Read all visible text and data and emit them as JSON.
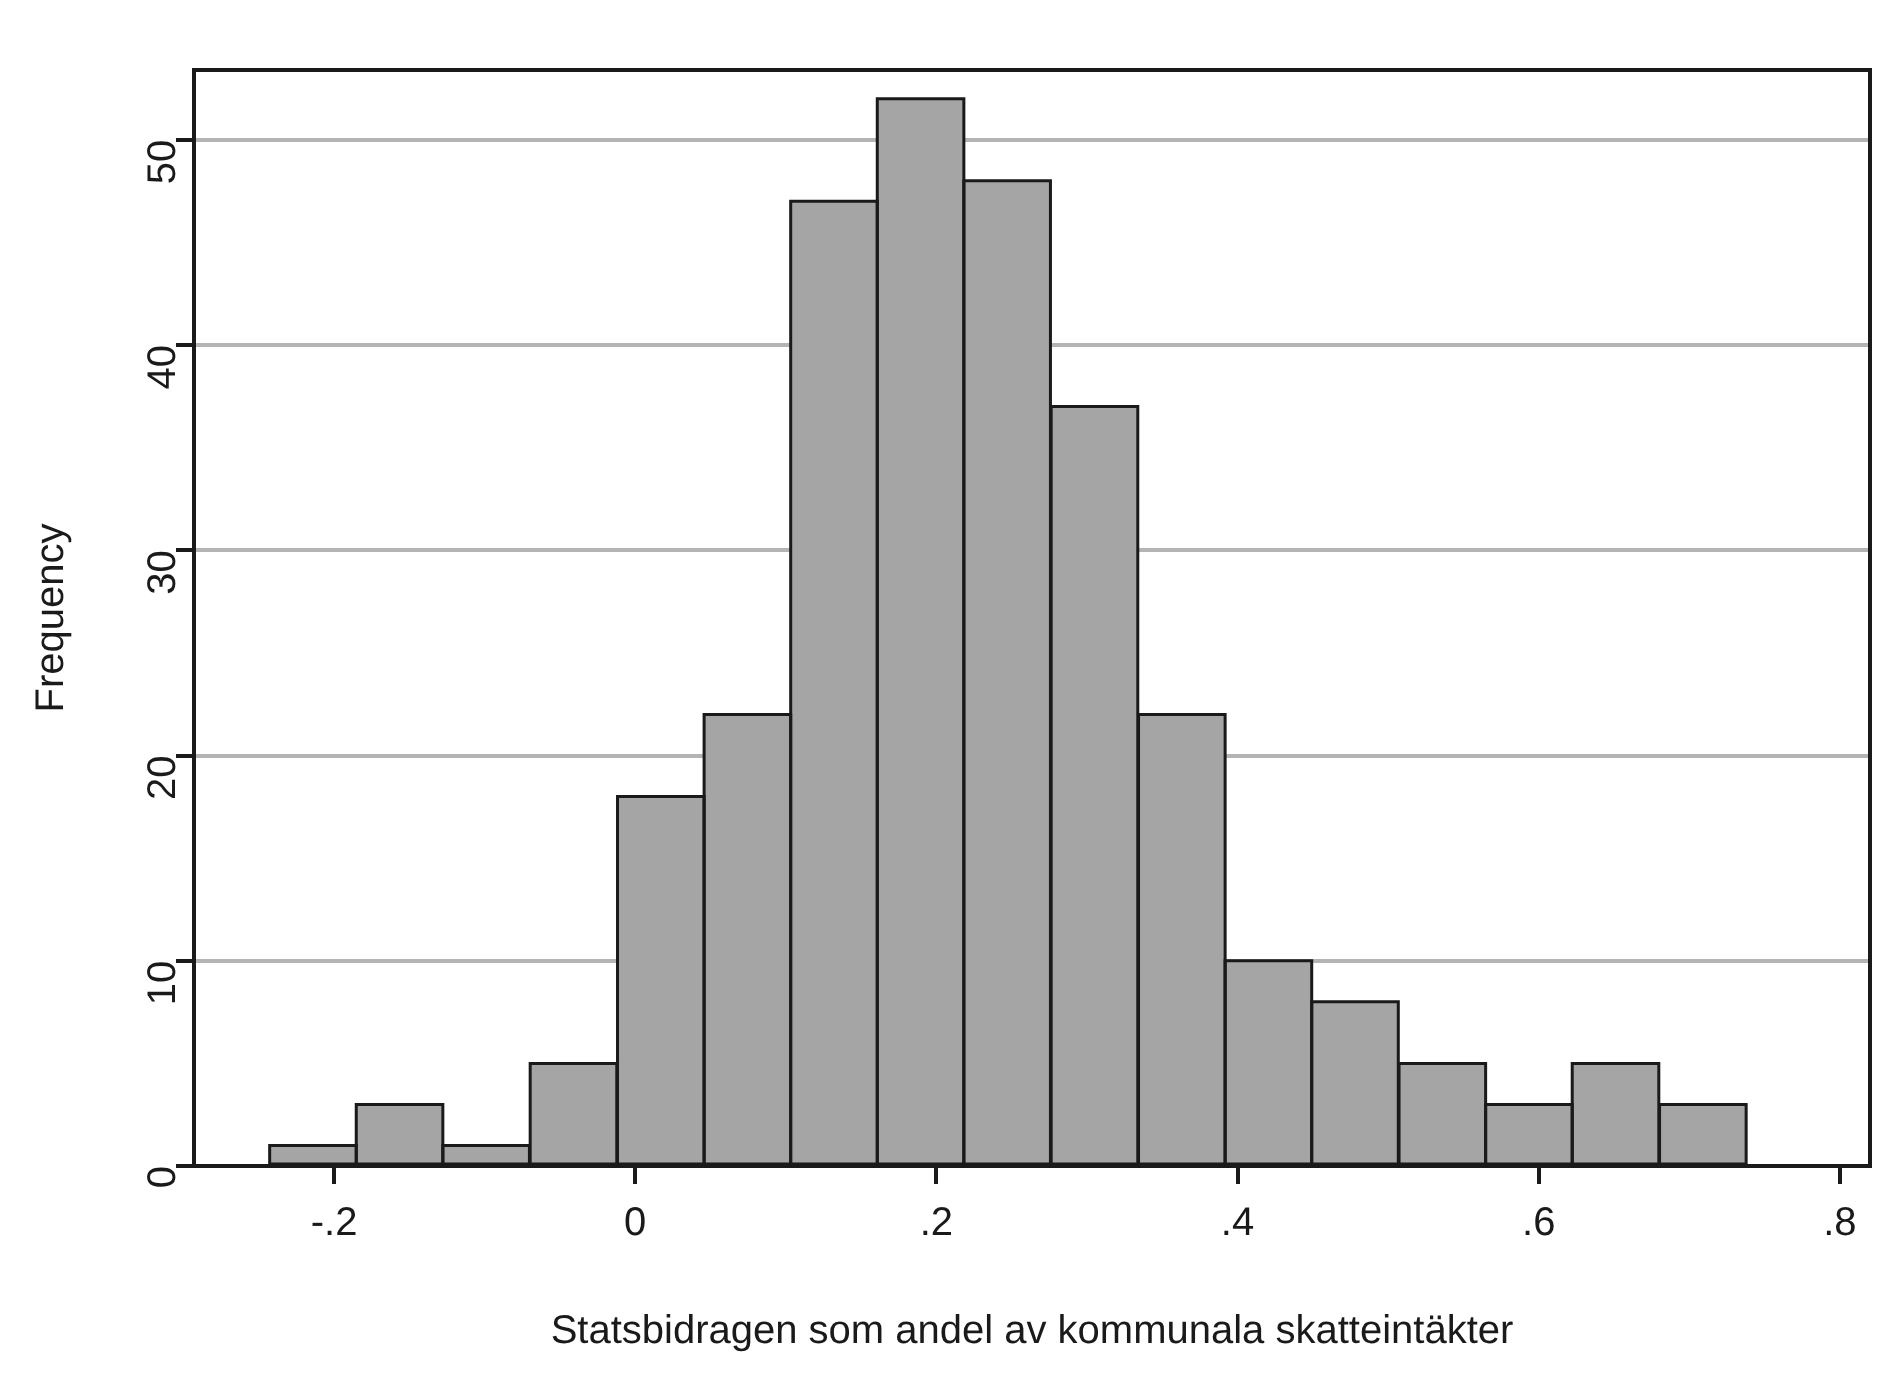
{
  "chart_data": {
    "type": "histogram",
    "xlabel": "Statsbidragen som andel av kommunala skatteintäkter",
    "ylabel": "Frequency",
    "bins": [
      -0.243,
      -0.185,
      -0.128,
      -0.07,
      -0.012,
      0.046,
      0.103,
      0.161,
      0.218,
      0.276,
      0.334,
      0.392,
      0.449,
      0.507,
      0.565,
      0.622,
      0.68,
      0.738
    ],
    "values": [
      1,
      3,
      1,
      5,
      18,
      22,
      47,
      52,
      48,
      37,
      22,
      10,
      8,
      5,
      3,
      5,
      3
    ],
    "color": "#a5a5a5",
    "xlim": [
      -0.293,
      0.82
    ],
    "xticks": [
      {
        "value": -0.2,
        "label": "-.2"
      },
      0,
      {
        "value": 0.2,
        "label": ".2"
      },
      {
        "value": 0.4,
        "label": ".4"
      },
      {
        "value": 0.6,
        "label": ".6"
      },
      {
        "value": 0.8,
        "label": ".8"
      }
    ],
    "ylim": [
      0,
      53.4
    ],
    "yticks": [
      0,
      10,
      20,
      30,
      40,
      50
    ],
    "grid": "y",
    "legend": false
  }
}
